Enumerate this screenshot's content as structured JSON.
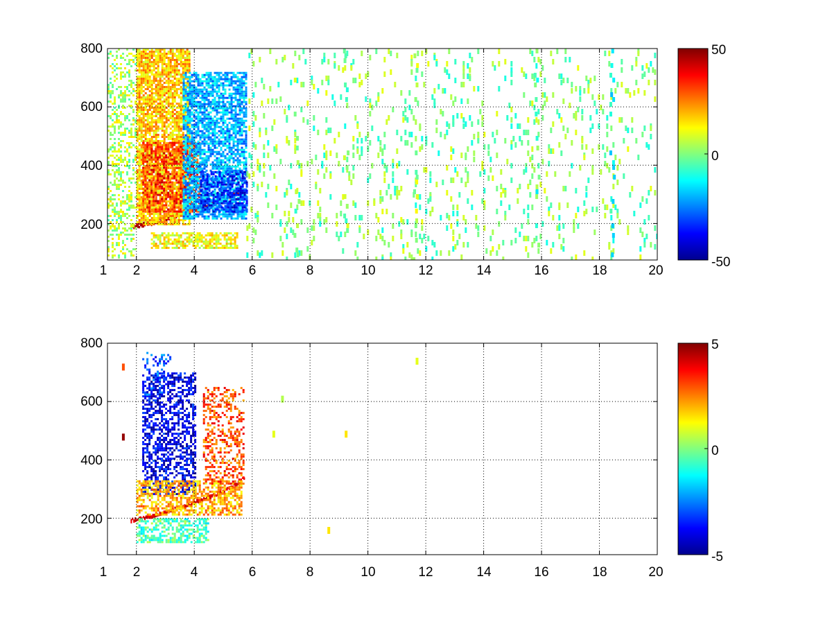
{
  "figure": {
    "background": "#ffffff"
  },
  "colormap": [
    "#00008f",
    "#0000ff",
    "#0080ff",
    "#00ffff",
    "#80ff80",
    "#ffff00",
    "#ff8000",
    "#ff0000",
    "#800000"
  ],
  "chart_data": [
    {
      "type": "heatmap",
      "title": "",
      "xlabel": "",
      "ylabel": "",
      "xlim": [
        1,
        20
      ],
      "ylim": [
        75,
        800
      ],
      "xticks": [
        1,
        2,
        4,
        6,
        8,
        10,
        12,
        14,
        16,
        18,
        20
      ],
      "xtick_labels": [
        "1",
        "2",
        "4",
        "6",
        "8",
        "10",
        "12",
        "14",
        "16",
        "18",
        "20"
      ],
      "yticks": [
        200,
        400,
        600,
        800
      ],
      "ytick_labels": [
        "200",
        "400",
        "600",
        "800"
      ],
      "grid": true,
      "clim": [
        -50,
        50
      ],
      "colorbar_ticks": [
        50,
        0,
        -50
      ],
      "colorbar_labels": [
        "50",
        "0",
        "-50"
      ],
      "features": [
        {
          "kind": "ridge",
          "points": [
            [
              1.8,
              192
            ],
            [
              2.5,
              205
            ],
            [
              3.5,
              235
            ],
            [
              4.5,
              265
            ],
            [
              5.3,
              300
            ],
            [
              5.7,
              320
            ]
          ],
          "value": 48,
          "width": 14
        },
        {
          "kind": "blob",
          "x": [
            2.0,
            3.8
          ],
          "y": [
            200,
            800
          ],
          "value": 18,
          "density": 0.8
        },
        {
          "kind": "blob",
          "x": [
            2.2,
            4.2
          ],
          "y": [
            240,
            480
          ],
          "value": 33,
          "density": 0.6
        },
        {
          "kind": "blob",
          "x": [
            3.6,
            5.8
          ],
          "y": [
            220,
            720
          ],
          "value": -20,
          "density": 0.75
        },
        {
          "kind": "blob",
          "x": [
            4.2,
            5.8
          ],
          "y": [
            240,
            380
          ],
          "value": -35,
          "density": 0.6
        },
        {
          "kind": "blob",
          "x": [
            1.0,
            2.0
          ],
          "y": [
            80,
            800
          ],
          "value": 5,
          "density": 0.35
        },
        {
          "kind": "blob",
          "x": [
            2.5,
            5.5
          ],
          "y": [
            120,
            170
          ],
          "value": 12,
          "density": 0.7
        },
        {
          "kind": "blob",
          "x": [
            5.8,
            20
          ],
          "y": [
            80,
            800
          ],
          "value": 0,
          "density": 0.045
        },
        {
          "kind": "stripe",
          "x": 9.2,
          "value": 0,
          "density": 0.35
        },
        {
          "kind": "stripe",
          "x": 11.6,
          "value": 5,
          "density": 0.4
        },
        {
          "kind": "stripe",
          "x": 18.4,
          "value": -10,
          "density": 0.3
        },
        {
          "kind": "stripe",
          "x": 15.8,
          "value": -5,
          "density": 0.25
        },
        {
          "kind": "stripe",
          "x": 7.5,
          "value": 0,
          "density": 0.2
        }
      ]
    },
    {
      "type": "heatmap",
      "title": "",
      "xlabel": "",
      "ylabel": "",
      "xlim": [
        1,
        20
      ],
      "ylim": [
        75,
        800
      ],
      "xticks": [
        1,
        2,
        4,
        6,
        8,
        10,
        12,
        14,
        16,
        18,
        20
      ],
      "xtick_labels": [
        "1",
        "2",
        "4",
        "6",
        "8",
        "10",
        "12",
        "14",
        "16",
        "18",
        "20"
      ],
      "yticks": [
        200,
        400,
        600,
        800
      ],
      "ytick_labels": [
        "200",
        "400",
        "600",
        "800"
      ],
      "grid": true,
      "clim": [
        -5,
        5
      ],
      "colorbar_ticks": [
        5,
        0,
        -5
      ],
      "colorbar_labels": [
        "5",
        "0",
        "-5"
      ],
      "features": [
        {
          "kind": "ridge",
          "points": [
            [
              1.8,
              195
            ],
            [
              2.5,
              210
            ],
            [
              3.5,
              240
            ],
            [
              4.5,
              275
            ],
            [
              5.3,
              310
            ],
            [
              5.7,
              340
            ]
          ],
          "value": 4.5,
          "width": 12
        },
        {
          "kind": "blob",
          "x": [
            2.2,
            4.0
          ],
          "y": [
            280,
            700
          ],
          "value": -4,
          "density": 0.55
        },
        {
          "kind": "blob",
          "x": [
            2.0,
            5.6
          ],
          "y": [
            210,
            330
          ],
          "value": 2,
          "density": 0.6
        },
        {
          "kind": "blob",
          "x": [
            4.3,
            5.7
          ],
          "y": [
            320,
            650
          ],
          "value": 3,
          "density": 0.4
        },
        {
          "kind": "blob",
          "x": [
            2.0,
            4.5
          ],
          "y": [
            120,
            200
          ],
          "value": -0.5,
          "density": 0.6
        },
        {
          "kind": "blob",
          "x": [
            2.2,
            3.2
          ],
          "y": [
            620,
            770
          ],
          "value": -3,
          "density": 0.25
        },
        {
          "kind": "spot",
          "x": 11.65,
          "y": 750,
          "value": 1
        },
        {
          "kind": "spot",
          "x": 9.2,
          "y": 500,
          "value": 1.5
        },
        {
          "kind": "spot",
          "x": 8.6,
          "y": 170,
          "value": 1.5
        },
        {
          "kind": "spot",
          "x": 6.7,
          "y": 500,
          "value": 1
        },
        {
          "kind": "spot",
          "x": 7.0,
          "y": 620,
          "value": 0.5
        },
        {
          "kind": "spot",
          "x": 1.5,
          "y": 490,
          "value": 4.8
        },
        {
          "kind": "spot",
          "x": 1.5,
          "y": 730,
          "value": 3
        }
      ]
    }
  ]
}
